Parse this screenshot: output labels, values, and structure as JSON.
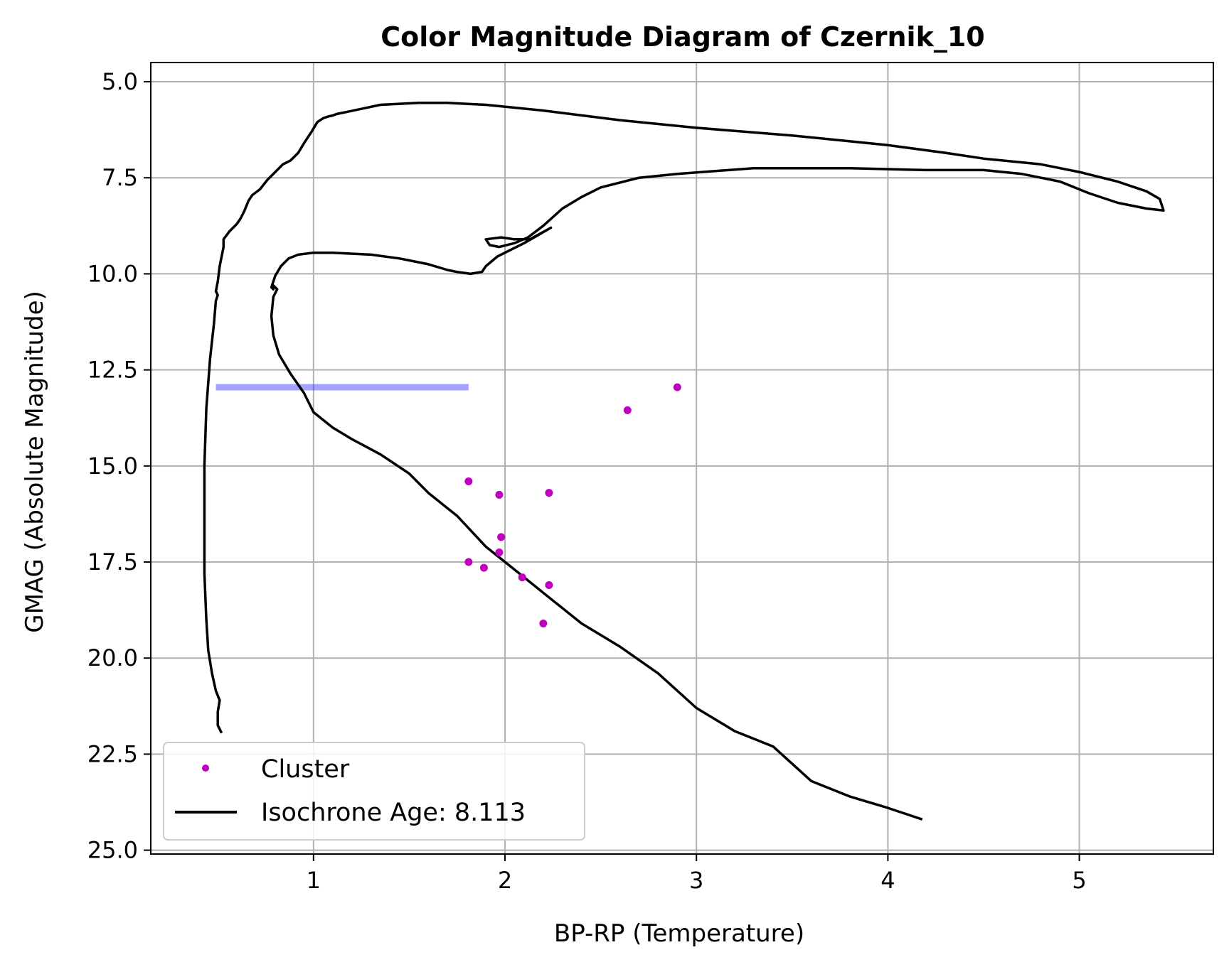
{
  "chart_data": {
    "type": "scatter",
    "title": "Color Magnitude Diagram of Czernik_10",
    "xlabel": "BP-RP (Temperature)",
    "ylabel": "GMAG (Absolute Magnitude)",
    "xlim": [
      0.15,
      5.7
    ],
    "ylim": [
      25.1,
      4.5
    ],
    "y_inverted": true,
    "grid": true,
    "legend_position": "lower-left",
    "x_ticks": [
      1,
      2,
      3,
      4,
      5
    ],
    "y_ticks": [
      5.0,
      7.5,
      10.0,
      12.5,
      15.0,
      17.5,
      20.0,
      22.5,
      25.0
    ],
    "x_tick_labels": [
      "1",
      "2",
      "3",
      "4",
      "5"
    ],
    "y_tick_labels": [
      "5.0",
      "7.5",
      "10.0",
      "12.5",
      "15.0",
      "17.5",
      "20.0",
      "22.5",
      "25.0"
    ],
    "series": [
      {
        "name": "Cluster",
        "kind": "scatter",
        "color": "#bf00bf",
        "points": [
          [
            2.9,
            12.95
          ],
          [
            2.64,
            13.55
          ],
          [
            1.81,
            15.4
          ],
          [
            1.97,
            15.75
          ],
          [
            2.23,
            15.7
          ],
          [
            1.98,
            16.85
          ],
          [
            1.97,
            17.25
          ],
          [
            1.81,
            17.5
          ],
          [
            1.89,
            17.65
          ],
          [
            2.09,
            17.9
          ],
          [
            2.23,
            18.1
          ],
          [
            2.2,
            19.1
          ]
        ]
      },
      {
        "name": "Isochrone Age: 8.113",
        "kind": "line",
        "color": "#000000",
        "segments": [
          [
            [
              0.52,
              21.95
            ],
            [
              0.5,
              21.75
            ],
            [
              0.5,
              21.4
            ],
            [
              0.51,
              21.1
            ],
            [
              0.49,
              20.85
            ],
            [
              0.47,
              20.4
            ],
            [
              0.45,
              19.8
            ],
            [
              0.44,
              19.0
            ],
            [
              0.43,
              17.8
            ],
            [
              0.43,
              16.5
            ],
            [
              0.43,
              15.0
            ],
            [
              0.44,
              13.5
            ],
            [
              0.46,
              12.2
            ],
            [
              0.48,
              11.3
            ],
            [
              0.49,
              10.7
            ],
            [
              0.5,
              10.55
            ],
            [
              0.49,
              10.45
            ],
            [
              0.5,
              10.2
            ],
            [
              0.51,
              9.8
            ],
            [
              0.53,
              9.3
            ],
            [
              0.53,
              9.1
            ],
            [
              0.56,
              8.9
            ],
            [
              0.6,
              8.7
            ],
            [
              0.62,
              8.55
            ],
            [
              0.64,
              8.35
            ],
            [
              0.66,
              8.1
            ],
            [
              0.68,
              7.95
            ],
            [
              0.72,
              7.8
            ],
            [
              0.76,
              7.55
            ],
            [
              0.8,
              7.35
            ],
            [
              0.84,
              7.15
            ],
            [
              0.88,
              7.05
            ],
            [
              0.92,
              6.85
            ],
            [
              0.95,
              6.6
            ],
            [
              0.99,
              6.3
            ],
            [
              1.02,
              6.05
            ],
            [
              1.05,
              5.95
            ],
            [
              1.08,
              5.9
            ],
            [
              1.1,
              5.88
            ],
            [
              1.12,
              5.84
            ],
            [
              1.18,
              5.78
            ],
            [
              1.35,
              5.6
            ],
            [
              1.55,
              5.55
            ],
            [
              1.7,
              5.55
            ],
            [
              1.9,
              5.6
            ],
            [
              2.2,
              5.75
            ],
            [
              2.6,
              6.0
            ],
            [
              3.0,
              6.2
            ],
            [
              3.5,
              6.4
            ],
            [
              4.0,
              6.65
            ],
            [
              4.3,
              6.85
            ],
            [
              4.5,
              7.0
            ],
            [
              4.8,
              7.15
            ],
            [
              5.0,
              7.35
            ],
            [
              5.2,
              7.6
            ],
            [
              5.35,
              7.85
            ],
            [
              5.42,
              8.05
            ],
            [
              5.43,
              8.2
            ],
            [
              5.44,
              8.35
            ],
            [
              5.35,
              8.3
            ],
            [
              5.2,
              8.15
            ],
            [
              5.05,
              7.9
            ],
            [
              4.9,
              7.6
            ],
            [
              4.7,
              7.4
            ],
            [
              4.5,
              7.3
            ],
            [
              4.2,
              7.3
            ],
            [
              3.8,
              7.25
            ],
            [
              3.3,
              7.25
            ],
            [
              2.9,
              7.4
            ],
            [
              2.7,
              7.5
            ],
            [
              2.5,
              7.75
            ],
            [
              2.4,
              8.0
            ],
            [
              2.3,
              8.3
            ],
            [
              2.2,
              8.75
            ],
            [
              2.12,
              9.05
            ],
            [
              2.05,
              9.2
            ],
            [
              1.97,
              9.3
            ],
            [
              1.92,
              9.25
            ],
            [
              1.9,
              9.1
            ],
            [
              1.98,
              9.05
            ],
            [
              2.05,
              9.1
            ],
            [
              2.13,
              9.1
            ],
            [
              2.24,
              8.8
            ],
            [
              2.1,
              9.2
            ],
            [
              1.96,
              9.55
            ],
            [
              1.9,
              9.8
            ],
            [
              1.88,
              9.95
            ],
            [
              1.82,
              10.0
            ],
            [
              1.75,
              9.95
            ],
            [
              1.7,
              9.9
            ],
            [
              1.6,
              9.75
            ],
            [
              1.45,
              9.6
            ],
            [
              1.3,
              9.5
            ],
            [
              1.1,
              9.45
            ],
            [
              1.0,
              9.45
            ],
            [
              0.92,
              9.5
            ],
            [
              0.87,
              9.6
            ],
            [
              0.83,
              9.8
            ],
            [
              0.8,
              10.05
            ],
            [
              0.78,
              10.35
            ],
            [
              0.79,
              10.4
            ],
            [
              0.79,
              10.3
            ],
            [
              0.81,
              10.4
            ],
            [
              0.79,
              10.6
            ],
            [
              0.78,
              11.1
            ],
            [
              0.79,
              11.6
            ],
            [
              0.82,
              12.1
            ],
            [
              0.88,
              12.6
            ],
            [
              0.95,
              13.1
            ],
            [
              1.0,
              13.6
            ],
            [
              1.1,
              14.0
            ],
            [
              1.2,
              14.3
            ],
            [
              1.35,
              14.7
            ],
            [
              1.5,
              15.2
            ],
            [
              1.6,
              15.7
            ],
            [
              1.75,
              16.3
            ],
            [
              1.9,
              17.1
            ],
            [
              2.05,
              17.7
            ],
            [
              2.2,
              18.3
            ],
            [
              2.4,
              19.1
            ],
            [
              2.6,
              19.7
            ],
            [
              2.8,
              20.4
            ],
            [
              3.0,
              21.3
            ],
            [
              3.2,
              21.9
            ],
            [
              3.4,
              22.3
            ],
            [
              3.6,
              23.2
            ],
            [
              3.8,
              23.6
            ],
            [
              4.0,
              23.9
            ],
            [
              4.18,
              24.2
            ]
          ]
        ]
      },
      {
        "kind": "band",
        "color": "#3333ff",
        "x": [
          0.49,
          1.81
        ],
        "y": 12.95
      }
    ]
  }
}
